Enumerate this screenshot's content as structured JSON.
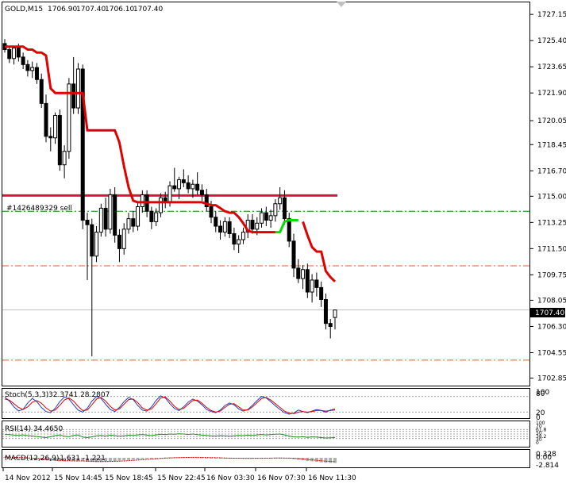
{
  "chart_data": {
    "type": "candlestick",
    "symbol_header": "GOLD,M15",
    "ohlc_header": [
      "1706.90",
      "1707.40",
      "1706.10",
      "1707.40"
    ],
    "price_axis": {
      "ticks": [
        "1727.15",
        "1725.40",
        "1723.65",
        "1721.90",
        "1720.05",
        "1718.45",
        "1716.70",
        "1715.00",
        "1713.25",
        "1711.50",
        "1709.75",
        "1708.05",
        "1706.30",
        "1704.55",
        "1702.85"
      ],
      "current_price": "1707.40",
      "ylim": [
        1702.4,
        1727.9
      ]
    },
    "time_axis": [
      "14 Nov 2012",
      "15 Nov 14:45",
      "15 Nov 18:45",
      "15 Nov 22:45",
      "16 Nov 03:30",
      "16 Nov 07:30",
      "16 Nov 11:30"
    ],
    "order_label": "#1426489329 sell",
    "levels": {
      "order_line": 1714.0,
      "resistance": 1715.05,
      "upper_dash": 1710.35,
      "lower_dash": 1704.05,
      "current": 1707.4
    },
    "candles": [
      [
        1725.2,
        1725.5,
        1724.6,
        1724.8
      ],
      [
        1724.8,
        1725.0,
        1723.9,
        1724.2
      ],
      [
        1724.2,
        1725.0,
        1723.8,
        1724.9
      ],
      [
        1724.9,
        1725.2,
        1724.0,
        1724.3
      ],
      [
        1724.3,
        1724.6,
        1723.5,
        1723.8
      ],
      [
        1723.8,
        1724.1,
        1723.0,
        1723.4
      ],
      [
        1723.4,
        1724.0,
        1722.9,
        1723.6
      ],
      [
        1723.6,
        1723.9,
        1722.5,
        1722.8
      ],
      [
        1722.8,
        1723.2,
        1720.9,
        1721.2
      ],
      [
        1721.2,
        1721.8,
        1718.6,
        1719.0
      ],
      [
        1719.0,
        1719.6,
        1718.0,
        1718.9
      ],
      [
        1718.9,
        1720.6,
        1718.5,
        1720.4
      ],
      [
        1720.4,
        1720.8,
        1716.7,
        1717.1
      ],
      [
        1717.1,
        1718.4,
        1716.2,
        1718.0
      ],
      [
        1718.0,
        1722.9,
        1717.5,
        1722.5
      ],
      [
        1722.5,
        1724.3,
        1720.5,
        1720.9
      ],
      [
        1720.9,
        1723.9,
        1720.5,
        1723.5
      ],
      [
        1723.5,
        1723.8,
        1712.8,
        1713.4
      ],
      [
        1713.4,
        1713.9,
        1709.4,
        1713.1
      ],
      [
        1713.1,
        1713.5,
        1704.3,
        1711.0
      ],
      [
        1711.0,
        1713.0,
        1710.6,
        1712.6
      ],
      [
        1712.6,
        1714.5,
        1712.3,
        1714.2
      ],
      [
        1714.2,
        1714.9,
        1712.3,
        1712.8
      ],
      [
        1712.8,
        1715.5,
        1712.5,
        1715.1
      ],
      [
        1715.1,
        1715.6,
        1711.9,
        1712.4
      ],
      [
        1712.4,
        1712.8,
        1710.6,
        1711.5
      ],
      [
        1711.5,
        1713.2,
        1711.1,
        1712.8
      ],
      [
        1712.8,
        1713.9,
        1712.5,
        1713.5
      ],
      [
        1713.5,
        1714.0,
        1712.6,
        1713.0
      ],
      [
        1713.0,
        1714.6,
        1712.7,
        1714.3
      ],
      [
        1714.3,
        1715.4,
        1713.9,
        1715.1
      ],
      [
        1715.1,
        1715.4,
        1713.6,
        1714.0
      ],
      [
        1714.0,
        1714.3,
        1712.8,
        1713.3
      ],
      [
        1713.3,
        1714.2,
        1713.0,
        1713.9
      ],
      [
        1713.9,
        1715.2,
        1713.6,
        1714.9
      ],
      [
        1714.9,
        1715.3,
        1714.2,
        1714.6
      ],
      [
        1714.6,
        1716.0,
        1714.3,
        1715.7
      ],
      [
        1715.7,
        1716.9,
        1715.3,
        1715.5
      ],
      [
        1715.5,
        1716.3,
        1714.8,
        1716.1
      ],
      [
        1716.1,
        1716.8,
        1715.6,
        1715.9
      ],
      [
        1715.9,
        1716.4,
        1715.2,
        1715.5
      ],
      [
        1715.5,
        1716.1,
        1714.9,
        1715.8
      ],
      [
        1715.8,
        1716.6,
        1715.1,
        1715.4
      ],
      [
        1715.4,
        1715.8,
        1714.7,
        1715.1
      ],
      [
        1715.1,
        1715.5,
        1714.0,
        1714.3
      ],
      [
        1714.3,
        1714.7,
        1713.2,
        1713.6
      ],
      [
        1713.6,
        1714.0,
        1712.6,
        1713.0
      ],
      [
        1713.0,
        1713.4,
        1712.1,
        1712.6
      ],
      [
        1712.6,
        1713.6,
        1712.3,
        1713.3
      ],
      [
        1713.3,
        1713.6,
        1712.2,
        1712.5
      ],
      [
        1712.5,
        1712.9,
        1711.4,
        1711.8
      ],
      [
        1711.8,
        1712.4,
        1711.2,
        1712.1
      ],
      [
        1712.1,
        1712.9,
        1711.8,
        1712.6
      ],
      [
        1712.6,
        1713.8,
        1712.2,
        1713.4
      ],
      [
        1713.4,
        1713.8,
        1712.5,
        1712.8
      ],
      [
        1712.8,
        1713.6,
        1712.4,
        1713.2
      ],
      [
        1713.2,
        1714.2,
        1712.9,
        1713.9
      ],
      [
        1713.9,
        1714.3,
        1713.0,
        1713.4
      ],
      [
        1713.4,
        1714.1,
        1712.9,
        1713.7
      ],
      [
        1713.7,
        1714.8,
        1713.3,
        1714.5
      ],
      [
        1714.5,
        1715.6,
        1714.1,
        1714.9
      ],
      [
        1714.9,
        1715.4,
        1713.1,
        1713.5
      ],
      [
        1713.5,
        1713.9,
        1711.6,
        1712.0
      ],
      [
        1712.0,
        1712.5,
        1709.6,
        1710.2
      ],
      [
        1710.2,
        1710.8,
        1709.2,
        1709.5
      ],
      [
        1709.5,
        1710.4,
        1708.8,
        1710.1
      ],
      [
        1710.1,
        1710.5,
        1708.2,
        1708.6
      ],
      [
        1708.6,
        1709.8,
        1707.9,
        1709.4
      ],
      [
        1709.4,
        1709.9,
        1708.3,
        1708.9
      ],
      [
        1708.9,
        1709.3,
        1707.6,
        1708.1
      ],
      [
        1708.1,
        1708.5,
        1706.1,
        1706.5
      ],
      [
        1706.5,
        1706.8,
        1705.5,
        1706.3
      ],
      [
        1706.9,
        1707.4,
        1706.1,
        1707.4
      ]
    ],
    "series": [
      {
        "name": "",
        "color": "#e00000",
        "values": [
          1725.0,
          1725.0,
          1725.0,
          1725.0,
          1725.0,
          1724.8,
          1724.8,
          1724.6,
          1724.6,
          1724.4,
          1722.2,
          1721.9,
          1721.9,
          1721.9,
          1721.9,
          1721.9,
          1721.9,
          1721.9,
          1719.4,
          1719.4,
          1719.4,
          1719.4,
          1719.4,
          1719.4,
          1719.4,
          1718.6,
          1717.0,
          1715.6,
          1714.7,
          1714.6,
          1714.6,
          1714.6,
          1714.6,
          1714.6,
          1714.6,
          1714.6,
          1714.6,
          1714.6,
          1714.6,
          1714.6,
          1714.6,
          1714.6,
          1714.6,
          1714.6,
          1714.5,
          1714.4,
          1714.4,
          1714.2,
          1714.0,
          1713.9,
          1713.9,
          1713.6,
          1713.2,
          1712.7,
          1712.6,
          1712.6,
          1712.6,
          1712.6,
          1712.6,
          1712.6,
          null,
          null,
          null,
          null,
          null,
          1713.3,
          1712.4,
          1711.6,
          1711.3,
          1711.3,
          1710.0,
          1709.6,
          1709.3
        ]
      },
      {
        "name": "",
        "color": "#00e000",
        "values": [
          null,
          null,
          null,
          null,
          null,
          null,
          null,
          null,
          null,
          null,
          null,
          null,
          null,
          null,
          null,
          null,
          null,
          null,
          null,
          null,
          null,
          null,
          null,
          null,
          null,
          null,
          null,
          null,
          null,
          null,
          null,
          null,
          null,
          null,
          null,
          null,
          null,
          null,
          null,
          null,
          null,
          null,
          null,
          null,
          null,
          null,
          null,
          null,
          null,
          null,
          null,
          null,
          null,
          null,
          null,
          null,
          null,
          null,
          null,
          1712.6,
          1712.6,
          1713.3,
          1713.4,
          1713.4,
          1713.4,
          null,
          null,
          null,
          null,
          null,
          null,
          null,
          null
        ]
      }
    ],
    "stochastic": {
      "label": "Stoch(5,3,3)",
      "values_text": "32.3741 28.2807",
      "ticks": [
        "100",
        "80",
        "20",
        "0"
      ],
      "main": [
        78,
        62,
        40,
        25,
        30,
        55,
        72,
        60,
        38,
        22,
        18,
        35,
        60,
        78,
        70,
        48,
        28,
        20,
        35,
        62,
        80,
        72,
        50,
        30,
        22,
        38,
        60,
        76,
        68,
        45,
        28,
        24,
        40,
        65,
        82,
        74,
        52,
        34,
        26,
        40,
        58,
        70,
        62,
        48,
        30,
        22,
        18,
        28,
        45,
        55,
        48,
        32,
        24,
        30,
        46,
        64,
        80,
        74,
        60,
        44,
        30,
        18,
        12,
        16,
        28,
        22,
        18,
        24,
        30,
        26,
        20,
        28,
        32
      ],
      "signal": [
        70,
        66,
        52,
        38,
        30,
        40,
        58,
        64,
        54,
        36,
        24,
        28,
        46,
        66,
        74,
        62,
        42,
        26,
        28,
        48,
        70,
        76,
        62,
        42,
        28,
        32,
        50,
        68,
        70,
        56,
        36,
        28,
        32,
        52,
        74,
        78,
        62,
        42,
        30,
        34,
        50,
        64,
        66,
        54,
        38,
        26,
        20,
        24,
        38,
        50,
        52,
        40,
        28,
        28,
        40,
        56,
        72,
        76,
        66,
        52,
        38,
        24,
        16,
        14,
        20,
        22,
        20,
        22,
        26,
        26,
        24,
        26,
        28
      ]
    },
    "rsi": {
      "label": "RSI(14)",
      "values_text": "34.4650",
      "ticks": [
        "100",
        "70",
        "61.8",
        "50",
        "38.2",
        "30",
        "0"
      ],
      "values": [
        48,
        47,
        45,
        44,
        46,
        43,
        41,
        39,
        36,
        34,
        38,
        43,
        46,
        40,
        38,
        44,
        46,
        36,
        34,
        37,
        42,
        44,
        41,
        45,
        43,
        40,
        42,
        45,
        44,
        46,
        48,
        45,
        43,
        46,
        49,
        47,
        50,
        49,
        51,
        50,
        48,
        50,
        47,
        45,
        44,
        42,
        41,
        43,
        42,
        40,
        42,
        44,
        43,
        45,
        44,
        46,
        48,
        46,
        47,
        49,
        50,
        46,
        41,
        37,
        36,
        38,
        35,
        37,
        36,
        34,
        32,
        33,
        34
      ]
    },
    "macd": {
      "label": "MACD(12,26,9)",
      "values_text": "-1.631 -1.221",
      "ticks": [
        "0.328",
        "0.00",
        "-2.814"
      ],
      "histogram": [
        0.2,
        0.1,
        0.05,
        -0.05,
        -0.1,
        -0.2,
        -0.3,
        -0.45,
        -0.6,
        -0.8,
        -0.95,
        -1.0,
        -1.1,
        -1.15,
        -1.05,
        -1.0,
        -0.95,
        -1.05,
        -1.2,
        -1.3,
        -1.35,
        -1.3,
        -1.2,
        -1.1,
        -1.0,
        -0.9,
        -0.8,
        -0.7,
        -0.6,
        -0.5,
        -0.4,
        -0.3,
        -0.2,
        -0.1,
        0.0,
        0.1,
        0.15,
        0.2,
        0.2,
        0.22,
        0.2,
        0.18,
        0.15,
        0.1,
        0.05,
        0.0,
        -0.05,
        -0.1,
        -0.15,
        -0.2,
        -0.25,
        -0.25,
        -0.25,
        -0.2,
        -0.2,
        -0.15,
        -0.1,
        -0.05,
        0.0,
        0.05,
        0.05,
        -0.05,
        -0.2,
        -0.4,
        -0.6,
        -0.8,
        -1.0,
        -1.1,
        -1.25,
        -1.4,
        -1.55,
        -1.6,
        -1.63
      ],
      "signal": [
        0.25,
        0.2,
        0.15,
        0.1,
        0.05,
        0.0,
        -0.1,
        -0.2,
        -0.3,
        -0.45,
        -0.6,
        -0.7,
        -0.8,
        -0.9,
        -0.95,
        -1.0,
        -1.0,
        -1.0,
        -1.05,
        -1.1,
        -1.15,
        -1.2,
        -1.2,
        -1.15,
        -1.1,
        -1.05,
        -1.0,
        -0.9,
        -0.8,
        -0.7,
        -0.6,
        -0.5,
        -0.4,
        -0.3,
        -0.2,
        -0.1,
        -0.05,
        0.0,
        0.05,
        0.1,
        0.12,
        0.14,
        0.14,
        0.12,
        0.1,
        0.08,
        0.05,
        0.0,
        -0.05,
        -0.1,
        -0.12,
        -0.15,
        -0.18,
        -0.18,
        -0.18,
        -0.16,
        -0.14,
        -0.12,
        -0.1,
        -0.08,
        -0.06,
        -0.07,
        -0.1,
        -0.15,
        -0.25,
        -0.35,
        -0.5,
        -0.65,
        -0.8,
        -0.95,
        -1.05,
        -1.15,
        -1.22
      ]
    }
  }
}
